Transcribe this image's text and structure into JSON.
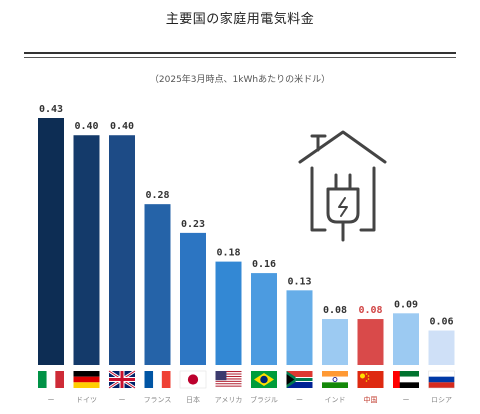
{
  "title": "主要国の家庭用電気料金",
  "subtitle": "（2025年3月時点、1kWhあたりの米ドル）",
  "icon": "house-plug-icon",
  "chart_data": {
    "type": "bar",
    "title": "主要国の家庭用電気料金",
    "subtitle": "（2025年3月時点、1kWhあたりの米ドル）",
    "categories": [
      "イタリア",
      "ドイツ",
      "イギリス",
      "フランス",
      "日本",
      "アメリカ",
      "ブラジル",
      "南アフリカ",
      "インド",
      "中国",
      "UAE",
      "ロシア"
    ],
    "category_labels": [
      "ー",
      "ドイツ",
      "ー",
      "フランス",
      "日本",
      "アメリカ",
      "ブラジル",
      "ー",
      "インド",
      "中国",
      "ー",
      "ロシア"
    ],
    "values": [
      0.43,
      0.4,
      0.4,
      0.28,
      0.23,
      0.18,
      0.16,
      0.13,
      0.08,
      0.08,
      0.09,
      0.06
    ],
    "value_labels": [
      "0.43",
      "0.40",
      "0.40",
      "0.28",
      "0.23",
      "0.18",
      "0.16",
      "0.13",
      "0.08",
      "0.08",
      "0.09",
      "0.06"
    ],
    "highlight": "中国",
    "ylim": [
      0,
      0.45
    ],
    "colors": [
      "#0d2d54",
      "#143a6a",
      "#1d4b86",
      "#2563a8",
      "#2c75c2",
      "#3388d4",
      "#4c9be0",
      "#66ade8",
      "#9ccaf2",
      "#d94a4a",
      "#9ccaf2",
      "#cfe0f7"
    ],
    "flags": [
      "italy-flag-icon",
      "germany-flag-icon",
      "uk-flag-icon",
      "france-flag-icon",
      "japan-flag-icon",
      "usa-flag-icon",
      "brazil-flag-icon",
      "south-africa-flag-icon",
      "india-flag-icon",
      "china-flag-icon",
      "uae-flag-icon",
      "russia-flag-icon"
    ],
    "grid": false,
    "legend": "none"
  }
}
